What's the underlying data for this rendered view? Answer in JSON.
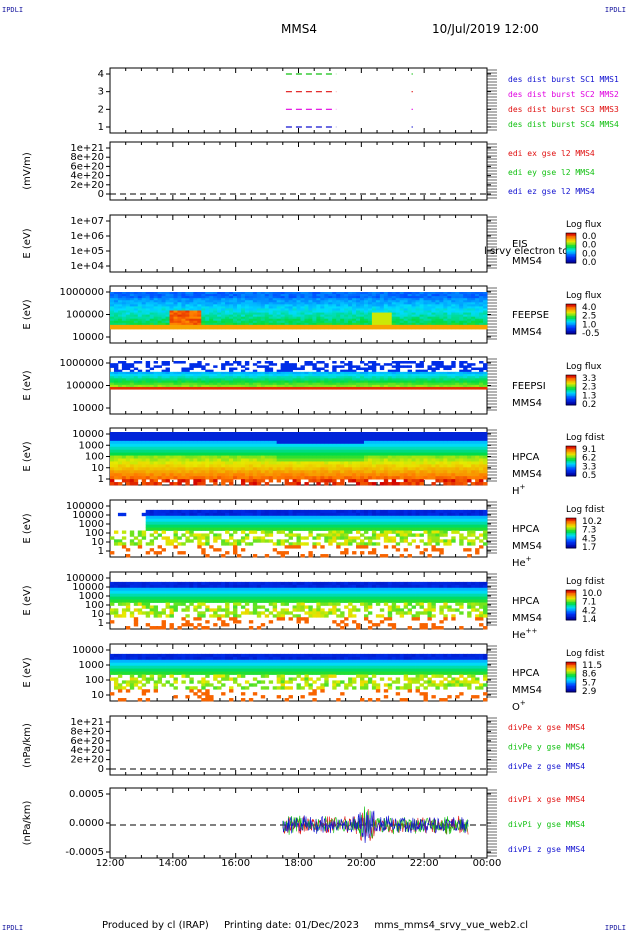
{
  "corners": {
    "tl": "IPDLI",
    "tr": "IPDLI",
    "bl": "IPDLI",
    "br": "IPDLI"
  },
  "header": {
    "spacecraft": "MMS4",
    "datetime": "10/Jul/2019 12:00"
  },
  "footer": {
    "produced": "Produced by cl (IRAP)",
    "printing": "Printing date: 01/Dec/2023",
    "file": "mms_mms4_srvy_vue_web2.cl"
  },
  "colors": {
    "blue": "#1010d0",
    "magenta": "#e000e0",
    "red": "#e01010",
    "green": "#10c010"
  },
  "chart_data": {
    "type": "line",
    "xticks": [
      "12:00",
      "14:00",
      "16:00",
      "18:00",
      "20:00",
      "22:00",
      "00:00"
    ],
    "panels": [
      {
        "id": "burst",
        "ylabel": "",
        "yticks": [
          "4",
          "3",
          "2",
          "1"
        ],
        "legend": [
          {
            "text": "des dist burst SC1 MMS1",
            "color": "#1010d0"
          },
          {
            "text": "des dist burst SC2 MMS2",
            "color": "#e000e0"
          },
          {
            "text": "des dist burst SC3 MMS3",
            "color": "#e01010"
          },
          {
            "text": "des dist burst SC4 MMS4",
            "color": "#10c010"
          }
        ],
        "dashes": [
          {
            "level": 4,
            "x0": 17.6,
            "x1": 19.2,
            "color": "#10c010"
          },
          {
            "level": 3,
            "x0": 17.6,
            "x1": 19.2,
            "color": "#e01010"
          },
          {
            "level": 2,
            "x0": 17.6,
            "x1": 19.2,
            "color": "#e000e0"
          },
          {
            "level": 1,
            "x0": 17.6,
            "x1": 19.2,
            "color": "#1010d0"
          }
        ]
      },
      {
        "id": "edi",
        "ylabel": "(mV/m)",
        "yticks": [
          "1e+21",
          "8e+20",
          "6e+20",
          "4e+20",
          "2e+20",
          "0"
        ],
        "legend": [
          {
            "text": "edi ex gse l2 MMS4",
            "color": "#e01010"
          },
          {
            "text": "edi ey gse l2 MMS4",
            "color": "#10c010"
          },
          {
            "text": "edi ez gse l2 MMS4",
            "color": "#1010d0"
          }
        ]
      },
      {
        "id": "eis",
        "ylabel": "E (eV)",
        "yticks": [
          "1e+07",
          "1e+06",
          "1e+05",
          "1e+04"
        ],
        "inst": [
          "EIS",
          "MMS4"
        ],
        "overlay": "l srvy electron tof",
        "cbar_title": "Log flux",
        "cbar_ticks": [
          "0.0",
          "0.0",
          "0.0",
          "0.0"
        ]
      },
      {
        "id": "feepse",
        "ylabel": "E (eV)",
        "yticks": [
          "1000000",
          "100000",
          "10000"
        ],
        "inst": [
          "FEEPSE",
          "MMS4"
        ],
        "cbar_title": "Log flux",
        "cbar_ticks": [
          "4.0",
          "2.5",
          "1.0",
          "-0.5"
        ]
      },
      {
        "id": "feepsi",
        "ylabel": "E (eV)",
        "yticks": [
          "1000000",
          "100000",
          "10000"
        ],
        "inst": [
          "FEEPSI",
          "MMS4"
        ],
        "cbar_title": "Log flux",
        "cbar_ticks": [
          "3.3",
          "2.3",
          "1.3",
          "0.2"
        ]
      },
      {
        "id": "hpca-h",
        "ylabel": "E (eV)",
        "yticks": [
          "10000",
          "1000",
          "100",
          "10",
          "1"
        ],
        "inst": [
          "HPCA",
          "MMS4",
          "H+"
        ],
        "cbar_title": "Log fdist",
        "cbar_ticks": [
          "9.1",
          "6.2",
          "3.3",
          "0.5"
        ]
      },
      {
        "id": "hpca-he",
        "ylabel": "E (eV)",
        "yticks": [
          "100000",
          "10000",
          "1000",
          "100",
          "10",
          "1"
        ],
        "inst": [
          "HPCA",
          "MMS4",
          "He+"
        ],
        "cbar_title": "Log fdist",
        "cbar_ticks": [
          "10.2",
          "7.3",
          "4.5",
          "1.7"
        ]
      },
      {
        "id": "hpca-hepp",
        "ylabel": "E (eV)",
        "yticks": [
          "100000",
          "10000",
          "1000",
          "100",
          "10",
          "1"
        ],
        "inst": [
          "HPCA",
          "MMS4",
          "He++"
        ],
        "cbar_title": "Log fdist",
        "cbar_ticks": [
          "10.0",
          "7.1",
          "4.2",
          "1.4"
        ]
      },
      {
        "id": "hpca-o",
        "ylabel": "E (eV)",
        "yticks": [
          "10000",
          "1000",
          "100",
          "10"
        ],
        "inst": [
          "HPCA",
          "MMS4",
          "O+"
        ],
        "cbar_title": "Log fdist",
        "cbar_ticks": [
          "11.5",
          "8.6",
          "5.7",
          "2.9"
        ]
      },
      {
        "id": "divpe",
        "ylabel": "(nPa/km)",
        "yticks": [
          "1e+21",
          "8e+20",
          "6e+20",
          "4e+20",
          "2e+20",
          "0"
        ],
        "legend": [
          {
            "text": "divPe x gse MMS4",
            "color": "#e01010"
          },
          {
            "text": "divPe y gse MMS4",
            "color": "#10c010"
          },
          {
            "text": "divPe z gse MMS4",
            "color": "#1010d0"
          }
        ]
      },
      {
        "id": "divpi",
        "ylabel": "(nPa/km)",
        "yticks": [
          "0.0005",
          "0.0000",
          "-0.0005"
        ],
        "legend": [
          {
            "text": "divPi x gse MMS4",
            "color": "#e01010"
          },
          {
            "text": "divPi y gse MMS4",
            "color": "#10c010"
          },
          {
            "text": "divPi z gse MMS4",
            "color": "#1010d0"
          }
        ]
      }
    ]
  }
}
